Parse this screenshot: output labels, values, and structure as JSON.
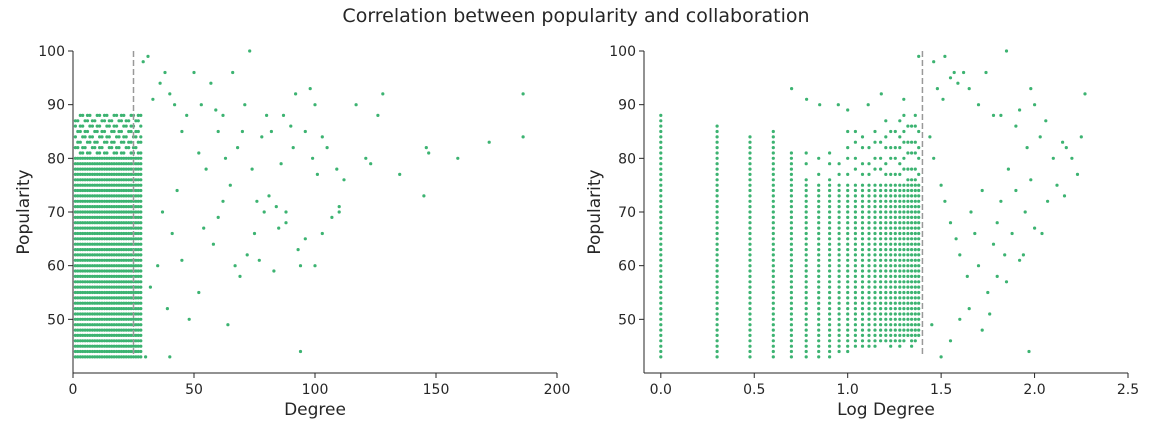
{
  "figure": {
    "title": "Correlation between popularity and collaboration",
    "point_color": "#3cb371",
    "threshold_line_color": "#999999"
  },
  "chart_data": [
    {
      "type": "scatter",
      "title": "",
      "xlabel": "Degree",
      "ylabel": "Popularity",
      "xlim": [
        0,
        200
      ],
      "ylim": [
        40,
        100
      ],
      "xticks": [
        "0",
        "50",
        "100",
        "150",
        "200"
      ],
      "yticks": [
        "50",
        "60",
        "70",
        "80",
        "90",
        "100"
      ],
      "grid": false,
      "threshold_line": {
        "axis": "x",
        "value": 25,
        "style": "dashed"
      },
      "dense_region": {
        "x_values": [
          1,
          2,
          3,
          4,
          5,
          6,
          7,
          8,
          9,
          10,
          11,
          12,
          13,
          14,
          15,
          16,
          17,
          18,
          19,
          20,
          21,
          22,
          23,
          24,
          25,
          26,
          27,
          28
        ],
        "y_range": [
          43,
          88
        ]
      },
      "points": [
        [
          29,
          98
        ],
        [
          31,
          99
        ],
        [
          33,
          91
        ],
        [
          36,
          94
        ],
        [
          38,
          96
        ],
        [
          40,
          92
        ],
        [
          42,
          90
        ],
        [
          45,
          85
        ],
        [
          47,
          88
        ],
        [
          50,
          96
        ],
        [
          52,
          81
        ],
        [
          53,
          90
        ],
        [
          55,
          78
        ],
        [
          57,
          94
        ],
        [
          59,
          89
        ],
        [
          60,
          85
        ],
        [
          62,
          88
        ],
        [
          63,
          80
        ],
        [
          65,
          75
        ],
        [
          66,
          96
        ],
        [
          68,
          82
        ],
        [
          70,
          85
        ],
        [
          71,
          90
        ],
        [
          73,
          100
        ],
        [
          74,
          78
        ],
        [
          76,
          72
        ],
        [
          78,
          84
        ],
        [
          80,
          88
        ],
        [
          81,
          73
        ],
        [
          82,
          85
        ],
        [
          84,
          71
        ],
        [
          85,
          67
        ],
        [
          86,
          79
        ],
        [
          87,
          88
        ],
        [
          88,
          70
        ],
        [
          90,
          86
        ],
        [
          91,
          82
        ],
        [
          92,
          92
        ],
        [
          93,
          63
        ],
        [
          96,
          85
        ],
        [
          98,
          93
        ],
        [
          99,
          80
        ],
        [
          100,
          90
        ],
        [
          101,
          77
        ],
        [
          103,
          84
        ],
        [
          105,
          82
        ],
        [
          107,
          69
        ],
        [
          109,
          78
        ],
        [
          110,
          71
        ],
        [
          112,
          76
        ],
        [
          117,
          90
        ],
        [
          121,
          80
        ],
        [
          123,
          79
        ],
        [
          126,
          88
        ],
        [
          128,
          92
        ],
        [
          135,
          77
        ],
        [
          145,
          73
        ],
        [
          146,
          82
        ],
        [
          147,
          81
        ],
        [
          159,
          80
        ],
        [
          172,
          83
        ],
        [
          186,
          84
        ],
        [
          186,
          92
        ],
        [
          32,
          56
        ],
        [
          35,
          60
        ],
        [
          37,
          70
        ],
        [
          39,
          52
        ],
        [
          41,
          66
        ],
        [
          43,
          74
        ],
        [
          45,
          61
        ],
        [
          48,
          50
        ],
        [
          52,
          55
        ],
        [
          54,
          67
        ],
        [
          58,
          64
        ],
        [
          60,
          69
        ],
        [
          62,
          72
        ],
        [
          64,
          49
        ],
        [
          67,
          60
        ],
        [
          69,
          58
        ],
        [
          72,
          62
        ],
        [
          75,
          66
        ],
        [
          77,
          61
        ],
        [
          79,
          70
        ],
        [
          83,
          59
        ],
        [
          88,
          68
        ],
        [
          94,
          60
        ],
        [
          96,
          65
        ],
        [
          100,
          60
        ],
        [
          103,
          66
        ],
        [
          110,
          70
        ],
        [
          94,
          44
        ],
        [
          40,
          43
        ],
        [
          30,
          43
        ]
      ]
    },
    {
      "type": "scatter",
      "title": "",
      "xlabel": "Log Degree",
      "ylabel": "Popularity",
      "xlim": [
        -0.09,
        2.5
      ],
      "ylim": [
        40,
        100
      ],
      "xticks": [
        "0.0",
        "0.5",
        "1.0",
        "1.5",
        "2.0",
        "2.5"
      ],
      "yticks": [
        "50",
        "60",
        "70",
        "80",
        "90",
        "100"
      ],
      "grid": false,
      "threshold_line": {
        "axis": "x",
        "value": 1.4,
        "style": "dashed"
      },
      "columns": [
        {
          "x": 0.0,
          "y_range": [
            43,
            88
          ]
        },
        {
          "x": 0.301,
          "y_range": [
            43,
            86
          ]
        },
        {
          "x": 0.477,
          "y_range": [
            43,
            84
          ]
        },
        {
          "x": 0.602,
          "y_range": [
            43,
            85
          ]
        },
        {
          "x": 0.699,
          "y_range": [
            43,
            81
          ]
        },
        {
          "x": 0.778,
          "y_range": [
            43,
            82
          ]
        },
        {
          "x": 0.845,
          "y_range": [
            43,
            80
          ]
        },
        {
          "x": 0.903,
          "y_range": [
            43,
            83
          ]
        },
        {
          "x": 0.954,
          "y_range": [
            44,
            79
          ]
        },
        {
          "x": 1.0,
          "y_range": [
            44,
            86
          ]
        },
        {
          "x": 1.041,
          "y_range": [
            45,
            85
          ]
        },
        {
          "x": 1.079,
          "y_range": [
            45,
            84
          ]
        },
        {
          "x": 1.114,
          "y_range": [
            45,
            82
          ]
        },
        {
          "x": 1.146,
          "y_range": [
            45,
            86
          ]
        },
        {
          "x": 1.176,
          "y_range": [
            46,
            84
          ]
        },
        {
          "x": 1.204,
          "y_range": [
            46,
            88
          ]
        },
        {
          "x": 1.23,
          "y_range": [
            45,
            86
          ]
        },
        {
          "x": 1.255,
          "y_range": [
            46,
            85
          ]
        },
        {
          "x": 1.279,
          "y_range": [
            45,
            87
          ]
        },
        {
          "x": 1.301,
          "y_range": [
            46,
            88
          ]
        },
        {
          "x": 1.322,
          "y_range": [
            47,
            86
          ]
        },
        {
          "x": 1.342,
          "y_range": [
            45,
            87
          ]
        },
        {
          "x": 1.362,
          "y_range": [
            46,
            88
          ]
        },
        {
          "x": 1.38,
          "y_range": [
            47,
            85
          ]
        }
      ],
      "points": [
        [
          0.7,
          93
        ],
        [
          0.78,
          91
        ],
        [
          0.85,
          90
        ],
        [
          0.95,
          90
        ],
        [
          1.0,
          89
        ],
        [
          1.11,
          90
        ],
        [
          1.18,
          92
        ],
        [
          1.3,
          91
        ],
        [
          1.38,
          99
        ],
        [
          1.46,
          98
        ],
        [
          1.48,
          93
        ],
        [
          1.51,
          91
        ],
        [
          1.52,
          99
        ],
        [
          1.55,
          95
        ],
        [
          1.57,
          96
        ],
        [
          1.59,
          94
        ],
        [
          1.62,
          96
        ],
        [
          1.65,
          93
        ],
        [
          1.7,
          90
        ],
        [
          1.74,
          96
        ],
        [
          1.78,
          88
        ],
        [
          1.82,
          88
        ],
        [
          1.85,
          100
        ],
        [
          1.9,
          86
        ],
        [
          1.92,
          89
        ],
        [
          1.96,
          82
        ],
        [
          1.98,
          93
        ],
        [
          2.0,
          90
        ],
        [
          2.03,
          84
        ],
        [
          2.06,
          87
        ],
        [
          2.1,
          80
        ],
        [
          2.15,
          83
        ],
        [
          2.17,
          82
        ],
        [
          2.2,
          80
        ],
        [
          2.23,
          77
        ],
        [
          2.25,
          84
        ],
        [
          2.27,
          92
        ],
        [
          1.44,
          84
        ],
        [
          1.46,
          80
        ],
        [
          1.5,
          75
        ],
        [
          1.52,
          72
        ],
        [
          1.55,
          68
        ],
        [
          1.58,
          65
        ],
        [
          1.6,
          62
        ],
        [
          1.64,
          58
        ],
        [
          1.66,
          70
        ],
        [
          1.68,
          66
        ],
        [
          1.7,
          60
        ],
        [
          1.72,
          74
        ],
        [
          1.75,
          55
        ],
        [
          1.78,
          64
        ],
        [
          1.8,
          68
        ],
        [
          1.82,
          72
        ],
        [
          1.84,
          62
        ],
        [
          1.86,
          78
        ],
        [
          1.88,
          66
        ],
        [
          1.9,
          74
        ],
        [
          1.92,
          61
        ],
        [
          1.95,
          70
        ],
        [
          1.98,
          76
        ],
        [
          2.0,
          67
        ],
        [
          2.04,
          66
        ],
        [
          2.07,
          72
        ],
        [
          2.12,
          75
        ],
        [
          2.16,
          73
        ],
        [
          1.97,
          44
        ],
        [
          1.5,
          43
        ],
        [
          1.55,
          46
        ],
        [
          1.45,
          49
        ],
        [
          1.6,
          50
        ],
        [
          1.65,
          52
        ],
        [
          1.72,
          48
        ],
        [
          1.76,
          51
        ],
        [
          1.8,
          58
        ],
        [
          1.85,
          57
        ],
        [
          1.94,
          62
        ]
      ]
    }
  ]
}
